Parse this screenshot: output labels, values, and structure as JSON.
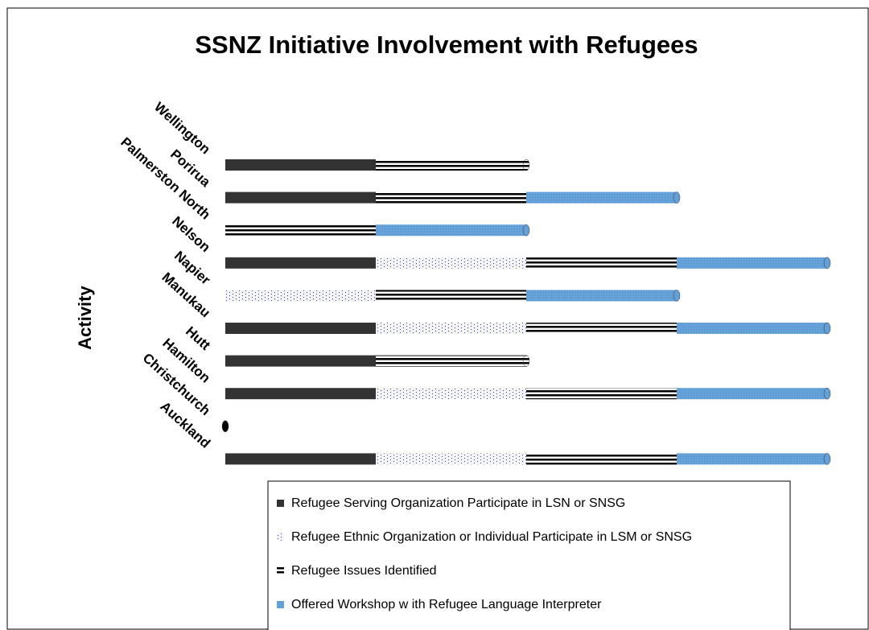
{
  "chart_data": {
    "type": "bar3d_stacked_horizontal",
    "title": "SSNZ Initiative Involvement with Refugees",
    "y_label": "Activity",
    "categories": [
      "Wellington",
      "Porirua",
      "Palmerston North",
      "Nelson",
      "Napier",
      "Manukau",
      "Hutt",
      "Hamilton",
      "Christchurch",
      "Auckland"
    ],
    "series": [
      {
        "name": "Refugee Serving Organization Participate in LSN or SNSG",
        "color": "#333333",
        "values": [
          1,
          1,
          0,
          1,
          0,
          1,
          1,
          1,
          0,
          1
        ]
      },
      {
        "name": "Refugee Ethnic Organization or Individual Participate in LSM or SNSG",
        "color": "#3333cc",
        "values": [
          0,
          0,
          0,
          1,
          1,
          1,
          0,
          1,
          0,
          1
        ]
      },
      {
        "name": "Refugee Issues Identified",
        "color": "#000000",
        "values": [
          1,
          1,
          1,
          1,
          1,
          1,
          1,
          1,
          0,
          1
        ]
      },
      {
        "name": "Offered Workshop w ith Refugee Language Interpreter",
        "color": "#5b9bd5",
        "values": [
          0,
          1,
          1,
          1,
          1,
          1,
          0,
          1,
          0,
          1
        ]
      }
    ],
    "legend": "bottom"
  }
}
